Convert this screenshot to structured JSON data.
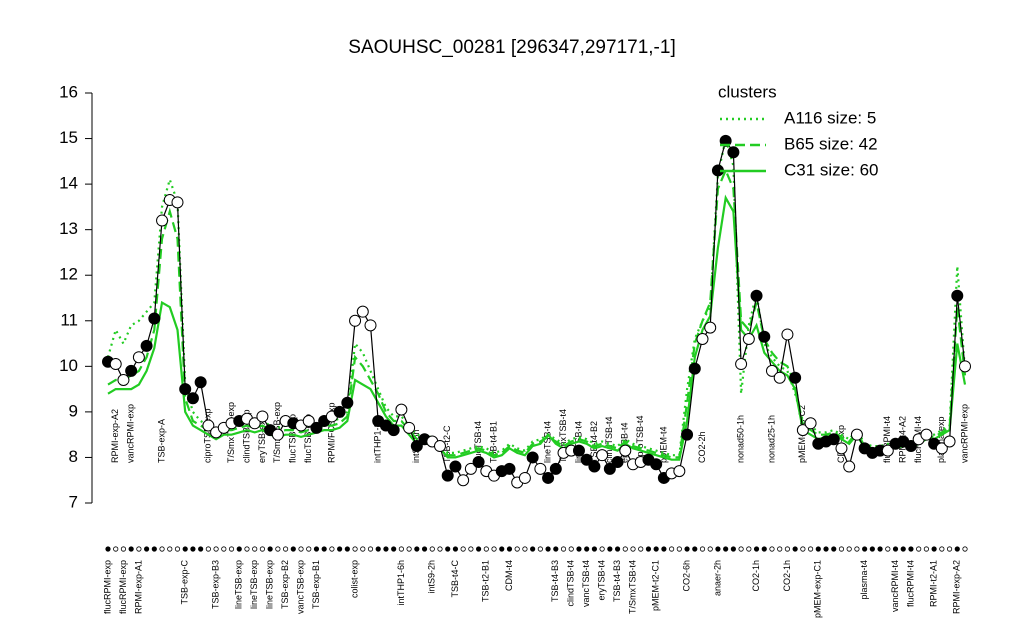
{
  "chart_data": {
    "type": "line",
    "title": "SAOUHSC_00281 [296347,297171,-1]",
    "ylim": [
      7,
      16
    ],
    "yticks": [
      7,
      8,
      9,
      10,
      11,
      12,
      13,
      14,
      15,
      16
    ],
    "categories": [
      "flucRPMI-exp",
      "RPMI-exp-A2",
      "flucRPMI-exp",
      "vancRPMI-exp",
      "RPMI-exp-A1",
      null,
      null,
      "TSB-exp-A",
      null,
      null,
      "TSB-exp-C",
      null,
      null,
      "ciproTSB-exp",
      "TSB-exp-B3",
      null,
      "T/SmxTSB-exp",
      "lineTSB-exp",
      "clindTSB-exp",
      "lineTSB-exp",
      "eryTSB-exp",
      "lineTSB-exp",
      "T/SmxTSB-exp",
      "TSB-exp-B2",
      "flucTSB-exp",
      "vancTSB-exp",
      "flucTSB-exp",
      "TSB-exp-B1",
      null,
      "RPMI/FCS-exp",
      null,
      null,
      "colist-exp",
      null,
      null,
      "intTHP1-2h",
      null,
      null,
      "intTHP1-6h",
      null,
      "intS9-6h",
      null,
      "intS9-2h",
      null,
      "TSB-t2-C",
      "TSB-t4-C",
      null,
      null,
      "flucTSB-t4",
      "TSB-t2-B1",
      "TSB-t4-B1",
      null,
      "CDM-t4",
      null,
      null,
      null,
      null,
      "lineTSB-t4",
      "TSB-t4-B3",
      "T/SmxTSB-t4",
      "clindTSB-t4",
      "lineTSB-t4",
      "vancTSB-t4",
      "TSB-t4-B2",
      "eryTSB-t4",
      "clindTSB-t4",
      "TSB-t4-B3",
      "eryTSB-t4",
      "T/SmxTSB-t4",
      "ciproTSB-t4",
      null,
      "pMEM-t2-C1",
      "pMEM-t4",
      null,
      null,
      "CO2-6h",
      null,
      "CO2-2h",
      null,
      "anaer-2h",
      null,
      null,
      "nonad50-1h",
      null,
      "CO2-1h",
      null,
      "nonad25-1h",
      null,
      "CO2-1h",
      null,
      "pMEM-exp-C2",
      null,
      "pMEM-exp-C1",
      null,
      null,
      "CDM-exp",
      null,
      null,
      "plasma-t4",
      null,
      null,
      "flucRPMI-t4",
      "vancRPMI-t4",
      "RPMI-t4-A2",
      "flucRPMI-t4",
      "flucRPMI-t4",
      null,
      "RPMI-t2-A1",
      "plasma-exp",
      null,
      "RPMI-exp-A2",
      "vancRPMI-exp"
    ],
    "values": [
      10.1,
      10.05,
      9.7,
      9.9,
      10.2,
      10.45,
      11.05,
      13.2,
      13.65,
      13.6,
      9.5,
      9.3,
      9.65,
      8.7,
      8.55,
      8.65,
      8.75,
      8.8,
      8.85,
      8.75,
      8.9,
      8.6,
      8.5,
      8.8,
      8.75,
      8.7,
      8.8,
      8.65,
      8.8,
      8.9,
      9.0,
      9.2,
      11.0,
      11.2,
      10.9,
      8.8,
      8.7,
      8.6,
      9.05,
      8.65,
      8.25,
      8.4,
      8.35,
      8.25,
      7.6,
      7.8,
      7.5,
      7.75,
      7.9,
      7.7,
      7.6,
      7.7,
      7.75,
      7.45,
      7.55,
      8.0,
      7.75,
      7.55,
      7.75,
      8.1,
      8.15,
      8.15,
      7.95,
      7.8,
      8.05,
      7.75,
      7.9,
      8.15,
      7.85,
      7.9,
      7.95,
      7.85,
      7.55,
      7.65,
      7.7,
      8.5,
      9.95,
      10.6,
      10.85,
      14.3,
      14.95,
      14.7,
      10.05,
      10.6,
      11.55,
      10.65,
      9.9,
      9.75,
      10.7,
      9.75,
      8.6,
      8.75,
      8.3,
      8.35,
      8.4,
      8.2,
      7.8,
      8.5,
      8.2,
      8.1,
      8.15,
      8.15,
      8.3,
      8.35,
      8.25,
      8.4,
      8.5,
      8.3,
      8.2,
      8.35,
      11.55,
      10.0
    ],
    "filled": [
      true,
      false,
      false,
      true,
      false,
      true,
      true,
      false,
      false,
      false,
      true,
      true,
      true,
      false,
      false,
      false,
      false,
      true,
      false,
      false,
      false,
      true,
      false,
      false,
      true,
      false,
      false,
      true,
      true,
      false,
      true,
      true,
      false,
      false,
      false,
      true,
      true,
      true,
      false,
      false,
      true,
      true,
      false,
      false,
      true,
      true,
      false,
      false,
      true,
      false,
      false,
      true,
      true,
      false,
      false,
      true,
      false,
      true,
      true,
      false,
      false,
      true,
      true,
      true,
      false,
      true,
      true,
      false,
      false,
      false,
      true,
      true,
      true,
      false,
      false,
      true,
      true,
      false,
      false,
      true,
      true,
      true,
      false,
      false,
      true,
      true,
      false,
      false,
      false,
      true,
      false,
      false,
      true,
      true,
      true,
      false,
      false,
      false,
      true,
      true,
      true,
      false,
      true,
      true,
      true,
      false,
      false,
      true,
      false,
      false,
      true,
      false
    ],
    "color": "#000000",
    "legend_title": "clusters",
    "legend_color": "#22cc22",
    "series": [
      {
        "name": "A116 size: 5",
        "color": "#22cc22",
        "dash": "dotted",
        "values": [
          10.2,
          10.8,
          10.5,
          10.9,
          11.0,
          11.2,
          11.4,
          13.5,
          14.1,
          13.6,
          9.6,
          9.0,
          8.8,
          8.7,
          8.6,
          8.7,
          8.7,
          8.75,
          8.8,
          8.75,
          8.8,
          8.7,
          8.65,
          8.7,
          8.7,
          8.65,
          8.7,
          8.75,
          8.8,
          8.8,
          8.85,
          9.0,
          10.5,
          10.3,
          9.9,
          9.5,
          9.1,
          8.9,
          8.9,
          8.7,
          8.5,
          8.45,
          8.45,
          8.35,
          8.1,
          8.1,
          8.15,
          8.2,
          8.25,
          8.2,
          8.1,
          8.15,
          8.3,
          8.2,
          8.15,
          8.35,
          8.4,
          8.5,
          8.4,
          8.3,
          8.4,
          8.45,
          8.4,
          8.3,
          8.35,
          8.3,
          8.25,
          8.4,
          8.3,
          8.25,
          8.2,
          8.15,
          8.1,
          8.05,
          8.05,
          9.5,
          10.6,
          11.0,
          11.3,
          14.2,
          15.0,
          14.4,
          9.4,
          10.9,
          11.6,
          10.5,
          10.2,
          10.0,
          9.9,
          9.4,
          8.8,
          8.7,
          8.55,
          8.55,
          8.6,
          8.5,
          8.4,
          8.6,
          8.3,
          8.25,
          8.25,
          8.3,
          8.3,
          8.35,
          8.35,
          8.4,
          8.5,
          8.5,
          8.6,
          8.7,
          12.2,
          9.9
        ]
      },
      {
        "name": "B65 size: 42",
        "color": "#22cc22",
        "dash": "dashed",
        "values": [
          9.6,
          9.7,
          9.7,
          9.8,
          9.9,
          10.2,
          10.8,
          12.8,
          13.4,
          12.8,
          9.3,
          8.8,
          8.7,
          8.6,
          8.5,
          8.6,
          8.6,
          8.65,
          8.7,
          8.65,
          8.7,
          8.6,
          8.55,
          8.6,
          8.6,
          8.55,
          8.6,
          8.65,
          8.7,
          8.7,
          8.75,
          8.9,
          10.2,
          10.0,
          9.7,
          9.4,
          9.0,
          8.8,
          8.8,
          8.6,
          8.4,
          8.4,
          8.4,
          8.3,
          8.05,
          8.05,
          8.1,
          8.15,
          8.2,
          8.15,
          8.05,
          8.1,
          8.25,
          8.15,
          8.1,
          8.3,
          8.35,
          8.45,
          8.35,
          8.25,
          8.35,
          8.4,
          8.35,
          8.25,
          8.3,
          8.25,
          8.2,
          8.35,
          8.25,
          8.2,
          8.15,
          8.1,
          8.05,
          8.0,
          8.0,
          9.2,
          10.5,
          11.0,
          11.4,
          13.9,
          14.3,
          13.9,
          11.0,
          10.8,
          11.4,
          10.6,
          10.3,
          10.1,
          10.0,
          9.6,
          8.7,
          8.6,
          8.5,
          8.5,
          8.55,
          8.45,
          8.35,
          8.55,
          8.25,
          8.2,
          8.2,
          8.25,
          8.25,
          8.3,
          8.3,
          8.35,
          8.45,
          8.45,
          8.55,
          8.65,
          11.3,
          9.8
        ]
      },
      {
        "name": "C31 size: 60",
        "color": "#22cc22",
        "dash": "solid",
        "values": [
          9.4,
          9.5,
          9.5,
          9.5,
          9.6,
          9.9,
          10.4,
          11.4,
          11.3,
          10.8,
          9.0,
          8.7,
          8.6,
          8.5,
          8.4,
          8.5,
          8.5,
          8.55,
          8.6,
          8.55,
          8.6,
          8.5,
          8.45,
          8.5,
          8.5,
          8.45,
          8.5,
          8.55,
          8.6,
          8.6,
          8.65,
          8.8,
          9.7,
          9.6,
          9.5,
          9.2,
          8.9,
          8.7,
          8.7,
          8.5,
          8.3,
          8.3,
          8.3,
          8.2,
          8.0,
          8.0,
          8.05,
          8.1,
          8.15,
          8.1,
          8.0,
          8.05,
          8.2,
          8.1,
          8.05,
          8.25,
          8.3,
          8.5,
          8.3,
          8.2,
          8.3,
          8.35,
          8.3,
          8.2,
          8.25,
          8.2,
          8.15,
          8.3,
          8.2,
          8.15,
          8.1,
          8.05,
          8.0,
          7.95,
          7.95,
          8.8,
          10.2,
          10.8,
          11.1,
          12.6,
          13.7,
          13.4,
          10.8,
          10.6,
          10.9,
          10.3,
          10.1,
          9.9,
          9.8,
          9.5,
          8.6,
          8.5,
          8.4,
          8.45,
          8.5,
          8.4,
          8.3,
          8.5,
          8.2,
          8.15,
          8.15,
          8.2,
          8.2,
          8.25,
          8.25,
          8.3,
          8.4,
          8.4,
          8.5,
          8.6,
          10.5,
          9.6
        ]
      }
    ]
  }
}
